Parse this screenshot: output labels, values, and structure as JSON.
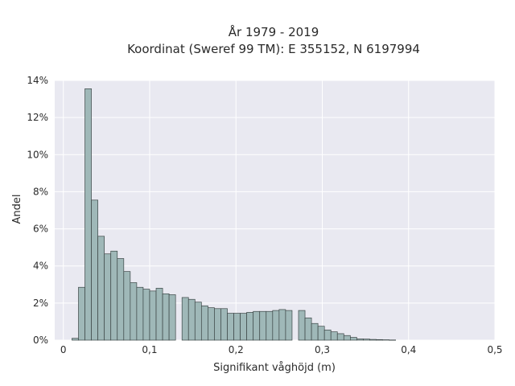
{
  "chart_data": {
    "type": "bar",
    "title_lines": [
      "År 1979 - 2019",
      "Koordinat (Sweref 99 TM): E 355152, N 6197994"
    ],
    "xlabel": "Signifikant våghöjd (m)",
    "ylabel": "Andel",
    "xlim": [
      -0.01,
      0.5
    ],
    "ylim": [
      0,
      0.14
    ],
    "x_ticks": [
      0,
      0.1,
      0.2,
      0.3,
      0.4,
      0.5
    ],
    "x_tick_labels": [
      "0",
      "0,1",
      "0,2",
      "0,3",
      "0,4",
      "0,5"
    ],
    "y_ticks": [
      0,
      0.02,
      0.04,
      0.06,
      0.08,
      0.1,
      0.12,
      0.14
    ],
    "y_tick_labels": [
      "0%",
      "2%",
      "4%",
      "6%",
      "8%",
      "10%",
      "12%",
      "14%"
    ],
    "grid": true,
    "bin_width": 0.0075,
    "bin_left_edges": [
      0.01,
      0.0175,
      0.025,
      0.0325,
      0.04,
      0.0475,
      0.055,
      0.0625,
      0.07,
      0.0775,
      0.085,
      0.0925,
      0.1,
      0.1075,
      0.115,
      0.1225,
      0.13,
      0.1375,
      0.145,
      0.1525,
      0.16,
      0.1675,
      0.175,
      0.1825,
      0.19,
      0.1975,
      0.205,
      0.2125,
      0.22,
      0.2275,
      0.235,
      0.2425,
      0.25,
      0.2575,
      0.265,
      0.2725,
      0.28,
      0.2875,
      0.295,
      0.3025,
      0.31,
      0.3175,
      0.325,
      0.3325,
      0.34,
      0.3475,
      0.355,
      0.3625,
      0.37,
      0.3775,
      0.385,
      0.3925,
      0.4,
      0.4075,
      0.415,
      0.4225,
      0.43,
      0.4375,
      0.445,
      0.4525
    ],
    "values": [
      0.001,
      0.0285,
      0.1355,
      0.0755,
      0.056,
      0.0465,
      0.048,
      0.044,
      0.037,
      0.031,
      0.0285,
      0.0275,
      0.0265,
      0.028,
      0.025,
      0.0245,
      0.0,
      0.023,
      0.022,
      0.0205,
      0.0185,
      0.0175,
      0.017,
      0.017,
      0.0145,
      0.0145,
      0.0145,
      0.015,
      0.0155,
      0.0155,
      0.0155,
      0.016,
      0.0165,
      0.016,
      0.0,
      0.016,
      0.012,
      0.009,
      0.0075,
      0.0055,
      0.0045,
      0.0035,
      0.0025,
      0.0015,
      0.0007,
      0.0006,
      0.0004,
      0.0003,
      0.0002,
      0.0001,
      0.0,
      0.0,
      0.0,
      0.0,
      0.0,
      0.0,
      0.0,
      0.0,
      0.0,
      0.0
    ]
  },
  "colors": {
    "plot_background": "#e9e9f1",
    "grid": "#ffffff",
    "bar_fill": "#9fb8b8",
    "bar_stroke": "#3c4646"
  }
}
